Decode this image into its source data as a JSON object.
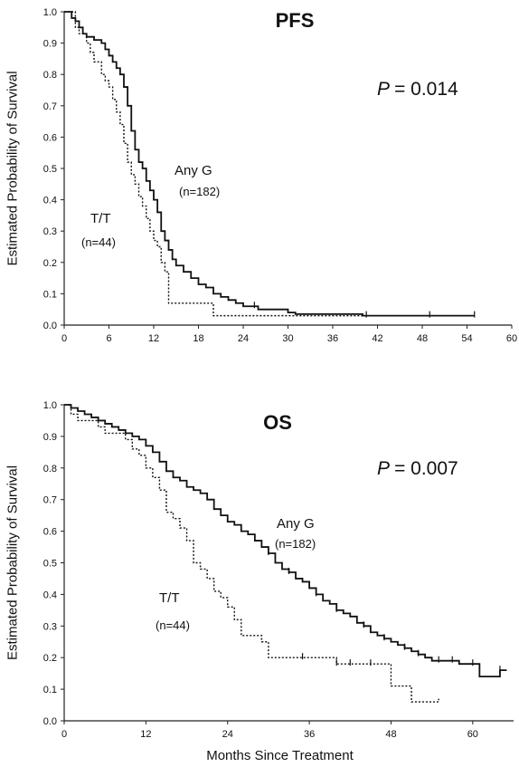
{
  "chart_data": [
    {
      "type": "line",
      "title": "PFS",
      "annotation": {
        "p_label": "P",
        "p_value": "= 0.014"
      },
      "ylabel": "Estimated Probability of Survival",
      "xlabel": "",
      "xlim": [
        0,
        60
      ],
      "ylim": [
        0,
        1
      ],
      "xticks": [
        0,
        6,
        12,
        18,
        24,
        30,
        36,
        42,
        48,
        54,
        60
      ],
      "yticks": [
        "0.0",
        "0.1",
        "0.2",
        "0.3",
        "0.4",
        "0.5",
        "0.6",
        "0.7",
        "0.8",
        "0.9",
        "1.0"
      ],
      "series": [
        {
          "name": "Any G",
          "n_label": "(n=182)",
          "style": "solid",
          "steps": [
            [
              0,
              1.0
            ],
            [
              1,
              0.98
            ],
            [
              1.5,
              0.97
            ],
            [
              2,
              0.95
            ],
            [
              2.5,
              0.93
            ],
            [
              3,
              0.92
            ],
            [
              4,
              0.91
            ],
            [
              5,
              0.9
            ],
            [
              5.5,
              0.88
            ],
            [
              6,
              0.86
            ],
            [
              6.5,
              0.84
            ],
            [
              7,
              0.82
            ],
            [
              7.5,
              0.8
            ],
            [
              8,
              0.76
            ],
            [
              8.5,
              0.7
            ],
            [
              9,
              0.62
            ],
            [
              9.5,
              0.56
            ],
            [
              10,
              0.52
            ],
            [
              10.5,
              0.5
            ],
            [
              11,
              0.46
            ],
            [
              11.5,
              0.43
            ],
            [
              12,
              0.4
            ],
            [
              12.5,
              0.36
            ],
            [
              13,
              0.3
            ],
            [
              13.5,
              0.27
            ],
            [
              14,
              0.24
            ],
            [
              14.5,
              0.21
            ],
            [
              15,
              0.19
            ],
            [
              16,
              0.17
            ],
            [
              17,
              0.15
            ],
            [
              18,
              0.13
            ],
            [
              19,
              0.12
            ],
            [
              20,
              0.1
            ],
            [
              21,
              0.09
            ],
            [
              22,
              0.08
            ],
            [
              23,
              0.07
            ],
            [
              24,
              0.06
            ],
            [
              26,
              0.05
            ],
            [
              28,
              0.05
            ],
            [
              30,
              0.04
            ],
            [
              31,
              0.035
            ],
            [
              40,
              0.03
            ],
            [
              55,
              0.03
            ]
          ],
          "censor_x": [
            25.5,
            40.5,
            49,
            55
          ]
        },
        {
          "name": "T/T",
          "n_label": "(n=44)",
          "style": "dotted",
          "steps": [
            [
              0,
              1.0
            ],
            [
              1.5,
              0.95
            ],
            [
              2,
              0.93
            ],
            [
              3,
              0.9
            ],
            [
              3.5,
              0.87
            ],
            [
              4,
              0.84
            ],
            [
              5,
              0.8
            ],
            [
              5.5,
              0.78
            ],
            [
              6,
              0.76
            ],
            [
              6.5,
              0.72
            ],
            [
              7,
              0.68
            ],
            [
              7.5,
              0.64
            ],
            [
              8,
              0.58
            ],
            [
              8.5,
              0.52
            ],
            [
              9,
              0.48
            ],
            [
              9.5,
              0.45
            ],
            [
              10,
              0.41
            ],
            [
              10.5,
              0.38
            ],
            [
              11,
              0.34
            ],
            [
              11.5,
              0.3
            ],
            [
              12,
              0.27
            ],
            [
              12.5,
              0.25
            ],
            [
              13,
              0.2
            ],
            [
              13.5,
              0.17
            ],
            [
              14,
              0.07
            ],
            [
              20,
              0.03
            ],
            [
              24,
              0.03
            ],
            [
              40,
              0.03
            ]
          ],
          "censor_x": []
        }
      ]
    },
    {
      "type": "line",
      "title": "OS",
      "annotation": {
        "p_label": "P",
        "p_value": "= 0.007"
      },
      "ylabel": "Estimated Probability of Survival",
      "xlabel": "Months Since Treatment",
      "xlim": [
        0,
        66
      ],
      "ylim": [
        0,
        1
      ],
      "xticks": [
        0,
        12,
        24,
        36,
        48,
        60
      ],
      "yticks": [
        "0.0",
        "0.1",
        "0.2",
        "0.3",
        "0.4",
        "0.5",
        "0.6",
        "0.7",
        "0.8",
        "0.9",
        "1.0"
      ],
      "series": [
        {
          "name": "Any G",
          "n_label": "(n=182)",
          "style": "solid",
          "steps": [
            [
              0,
              1.0
            ],
            [
              1,
              0.99
            ],
            [
              2,
              0.98
            ],
            [
              3,
              0.97
            ],
            [
              4,
              0.96
            ],
            [
              5,
              0.95
            ],
            [
              6,
              0.94
            ],
            [
              7,
              0.93
            ],
            [
              8,
              0.92
            ],
            [
              9,
              0.91
            ],
            [
              10,
              0.9
            ],
            [
              11,
              0.89
            ],
            [
              12,
              0.87
            ],
            [
              13,
              0.85
            ],
            [
              14,
              0.82
            ],
            [
              15,
              0.79
            ],
            [
              16,
              0.77
            ],
            [
              17,
              0.76
            ],
            [
              18,
              0.74
            ],
            [
              19,
              0.73
            ],
            [
              20,
              0.72
            ],
            [
              21,
              0.7
            ],
            [
              22,
              0.67
            ],
            [
              23,
              0.65
            ],
            [
              24,
              0.63
            ],
            [
              25,
              0.62
            ],
            [
              26,
              0.6
            ],
            [
              27,
              0.59
            ],
            [
              28,
              0.57
            ],
            [
              29,
              0.55
            ],
            [
              30,
              0.53
            ],
            [
              31,
              0.5
            ],
            [
              32,
              0.48
            ],
            [
              33,
              0.47
            ],
            [
              34,
              0.45
            ],
            [
              35,
              0.44
            ],
            [
              36,
              0.42
            ],
            [
              37,
              0.4
            ],
            [
              38,
              0.38
            ],
            [
              39,
              0.37
            ],
            [
              40,
              0.35
            ],
            [
              41,
              0.34
            ],
            [
              42,
              0.33
            ],
            [
              43,
              0.31
            ],
            [
              44,
              0.3
            ],
            [
              45,
              0.28
            ],
            [
              46,
              0.27
            ],
            [
              47,
              0.26
            ],
            [
              48,
              0.25
            ],
            [
              49,
              0.24
            ],
            [
              50,
              0.23
            ],
            [
              51,
              0.22
            ],
            [
              52,
              0.21
            ],
            [
              53,
              0.2
            ],
            [
              54,
              0.19
            ],
            [
              58,
              0.18
            ],
            [
              61,
              0.14
            ],
            [
              64,
              0.16
            ],
            [
              65,
              0.16
            ]
          ],
          "censor_x": [
            30,
            33,
            37,
            40,
            44,
            47,
            50,
            52,
            55,
            57,
            60,
            64
          ]
        },
        {
          "name": "T/T",
          "n_label": "(n=44)",
          "style": "dotted",
          "steps": [
            [
              0,
              1.0
            ],
            [
              1,
              0.97
            ],
            [
              2,
              0.95
            ],
            [
              5,
              0.93
            ],
            [
              6,
              0.91
            ],
            [
              9,
              0.89
            ],
            [
              10,
              0.86
            ],
            [
              11,
              0.84
            ],
            [
              12,
              0.8
            ],
            [
              13,
              0.77
            ],
            [
              14,
              0.73
            ],
            [
              15,
              0.66
            ],
            [
              16,
              0.64
            ],
            [
              17,
              0.61
            ],
            [
              18,
              0.57
            ],
            [
              19,
              0.5
            ],
            [
              20,
              0.48
            ],
            [
              21,
              0.45
            ],
            [
              22,
              0.41
            ],
            [
              23,
              0.39
            ],
            [
              24,
              0.36
            ],
            [
              25,
              0.32
            ],
            [
              26,
              0.27
            ],
            [
              29,
              0.25
            ],
            [
              30,
              0.2
            ],
            [
              40,
              0.18
            ],
            [
              48,
              0.11
            ],
            [
              51,
              0.06
            ],
            [
              54,
              0.06
            ],
            [
              55,
              0.07
            ]
          ],
          "censor_x": [
            35,
            40,
            42,
            45
          ]
        }
      ]
    }
  ]
}
